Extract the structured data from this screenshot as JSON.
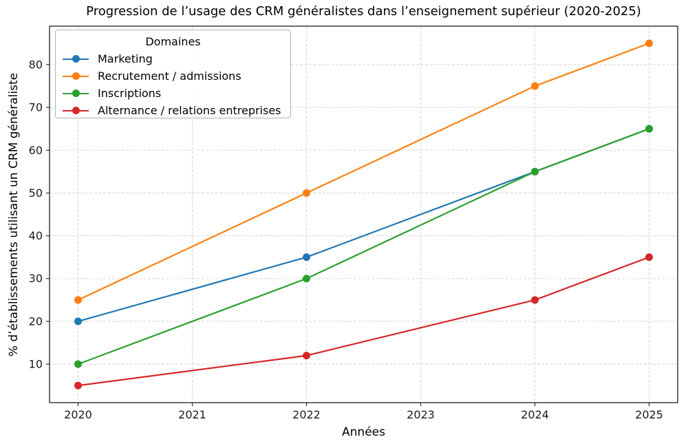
{
  "chart_data": {
    "type": "line",
    "title": "Progression de l’usage des CRM généralistes dans l’enseignement supérieur (2020-2025)",
    "xlabel": "Années",
    "ylabel": "% d’établissements utilisant un CRM généraliste",
    "legend_title": "Domaines",
    "legend_position": "upper left",
    "grid": true,
    "x": [
      2020,
      2022,
      2024,
      2025
    ],
    "series": [
      {
        "name": "Marketing",
        "color": "#1f77b4",
        "values": [
          20,
          35,
          55,
          65
        ]
      },
      {
        "name": "Recrutement / admissions",
        "color": "#ff7f0e",
        "values": [
          25,
          50,
          75,
          85
        ]
      },
      {
        "name": "Inscriptions",
        "color": "#2ca02c",
        "values": [
          10,
          30,
          55,
          65
        ]
      },
      {
        "name": "Alternance / relations entreprises",
        "color": "#d62728",
        "values": [
          5,
          12,
          25,
          35
        ]
      }
    ],
    "x_ticks": [
      2020,
      2021,
      2022,
      2023,
      2024,
      2025
    ],
    "y_ticks": [
      10,
      20,
      30,
      40,
      50,
      60,
      70,
      80
    ],
    "xlim": [
      2019.75,
      2025.25
    ],
    "ylim": [
      1,
      89
    ],
    "colors": {
      "grid": "#d8d8d8",
      "spine": "#2d2d2d",
      "tick_label": "#1a1a1a",
      "legend_border": "#b0b0b0"
    }
  }
}
